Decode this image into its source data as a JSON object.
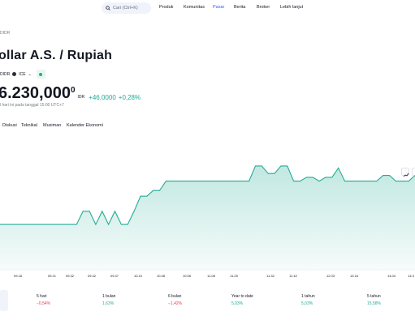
{
  "nav": {
    "search_placeholder": "Cari (Ctrl+K)",
    "items": [
      "Produk",
      "Komunitas",
      "Pasar",
      "Berita",
      "Broker",
      "Lebih lanjut"
    ],
    "active_index": 2
  },
  "breadcrumb": "DIDR",
  "title": "ollar A.S. / Rupiah",
  "meta": {
    "symbol": "DIDR",
    "exchange": "ICE"
  },
  "price": {
    "main": "6.230,000",
    "superscript": "0",
    "currency": "IDR",
    "change": "+46,0000",
    "change_pct": "+0,28%"
  },
  "as_of": "l hari ini pada tanggal 15:00 UTC+7",
  "tabs": [
    "Diskusi",
    "Teknikal",
    "Musiman",
    "Kalender Ekonomi"
  ],
  "colors": {
    "accent": "#2962ff",
    "positive": "#22ab94",
    "negative": "#f23645"
  },
  "chart_data": {
    "type": "area",
    "x_ticks": [
      "09.18",
      "09.21",
      "09.32",
      "09.42",
      "09.47",
      "10.10",
      "10.48",
      "10.55",
      "11.08",
      "11.25",
      "11.32",
      "11.42",
      "12.03",
      "13.16",
      "14.04",
      "14.3"
    ],
    "values": [
      16194,
      16194,
      16194,
      16194,
      16194,
      16194,
      16194,
      16194,
      16194,
      16194,
      16194,
      16194,
      16194,
      16201,
      16201,
      16194,
      16201,
      16194,
      16201,
      16194,
      16194,
      16201,
      16209,
      16209,
      16212,
      16212,
      16217,
      16217,
      16217,
      16217,
      16217,
      16217,
      16217,
      16217,
      16217,
      16217,
      16217,
      16217,
      16217,
      16217,
      16225,
      16225,
      16221,
      16221,
      16225,
      16225,
      16217,
      16217,
      16219,
      16219,
      16217,
      16219,
      16219,
      16224,
      16217,
      16217,
      16217,
      16217,
      16217,
      16217,
      16220,
      16220,
      16217,
      16217,
      16217,
      16220
    ],
    "ylim": [
      16170,
      16240
    ],
    "grid": false,
    "legend": "none"
  },
  "performance": [
    {
      "label": "5 hari",
      "value": "−0,54%",
      "sign": "neg"
    },
    {
      "label": "1 bulan",
      "value": "1,63%",
      "sign": "pos"
    },
    {
      "label": "6 bulan",
      "value": "−1,42%",
      "sign": "neg"
    },
    {
      "label": "Year to date",
      "value": "5,03%",
      "sign": "pos"
    },
    {
      "label": "1 tahun",
      "value": "5,03%",
      "sign": "pos"
    },
    {
      "label": "5 tahun",
      "value": "15,58%",
      "sign": "pos"
    }
  ]
}
